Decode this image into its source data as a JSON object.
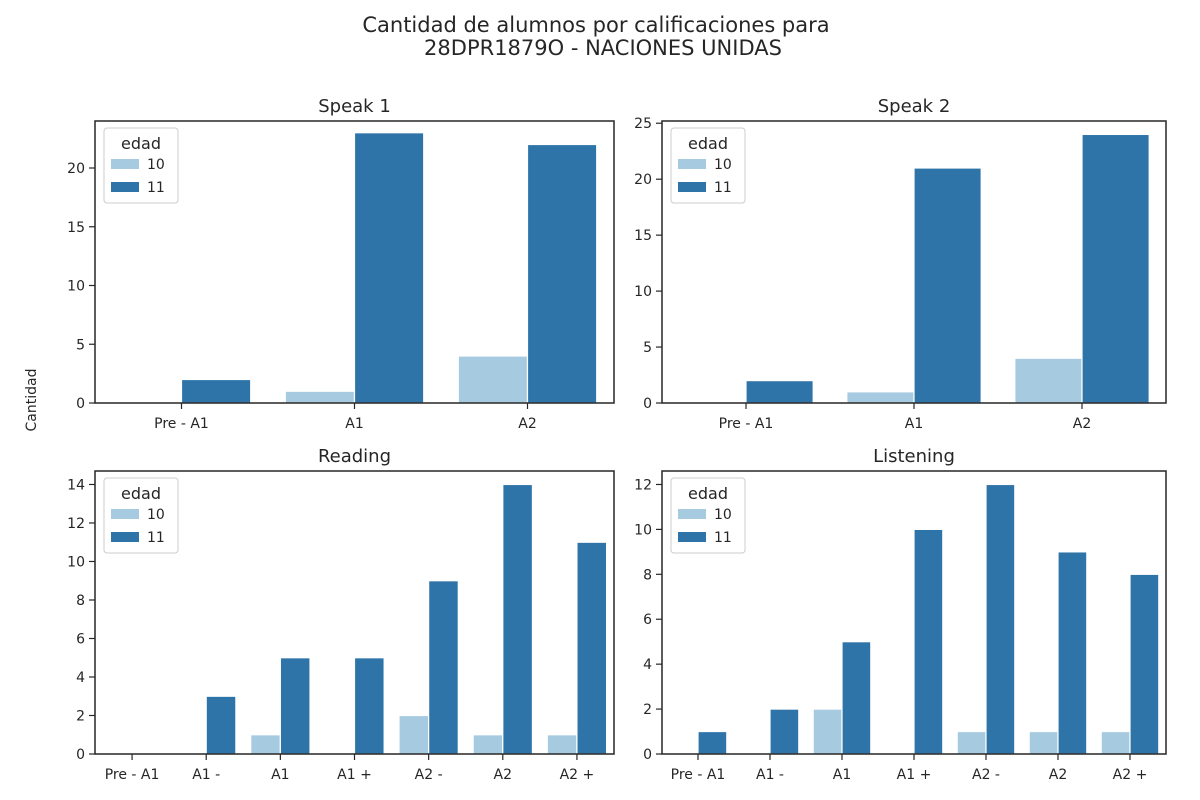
{
  "suptitle": [
    "Cantidad de alumnos por calificaciones para",
    "28DPR1879O - NACIONES UNIDAS"
  ],
  "ylabel": "Cantidad",
  "legend_title": "edad",
  "colors": {
    "10": "#a6cbe0",
    "11": "#2e74a8"
  },
  "chart_data": [
    {
      "type": "bar",
      "title": "Speak 1",
      "categories": [
        "Pre - A1",
        "A1",
        "A2"
      ],
      "series": [
        {
          "name": "10",
          "values": [
            0,
            1,
            4
          ]
        },
        {
          "name": "11",
          "values": [
            2,
            23,
            22
          ]
        }
      ],
      "ylim": [
        0,
        24
      ],
      "yticks": [
        0,
        5,
        10,
        15,
        20
      ],
      "legend": "upper-left"
    },
    {
      "type": "bar",
      "title": "Speak 2",
      "categories": [
        "Pre - A1",
        "A1",
        "A2"
      ],
      "series": [
        {
          "name": "10",
          "values": [
            0,
            1,
            4
          ]
        },
        {
          "name": "11",
          "values": [
            2,
            21,
            24
          ]
        }
      ],
      "ylim": [
        0,
        25.2
      ],
      "yticks": [
        0,
        5,
        10,
        15,
        20,
        25
      ],
      "legend": "upper-left"
    },
    {
      "type": "bar",
      "title": "Reading",
      "categories": [
        "Pre - A1",
        "A1 -",
        "A1",
        "A1 +",
        "A2 -",
        "A2",
        "A2 +"
      ],
      "series": [
        {
          "name": "10",
          "values": [
            0,
            0,
            1,
            0,
            2,
            1,
            1
          ]
        },
        {
          "name": "11",
          "values": [
            0,
            3,
            5,
            5,
            9,
            14,
            11
          ]
        }
      ],
      "ylim": [
        0,
        14.7
      ],
      "yticks": [
        0,
        2,
        4,
        6,
        8,
        10,
        12,
        14
      ],
      "legend": "upper-left"
    },
    {
      "type": "bar",
      "title": "Listening",
      "categories": [
        "Pre - A1",
        "A1 -",
        "A1",
        "A1 +",
        "A2 -",
        "A2",
        "A2 +"
      ],
      "series": [
        {
          "name": "10",
          "values": [
            0,
            0,
            2,
            0,
            1,
            1,
            1
          ]
        },
        {
          "name": "11",
          "values": [
            1,
            2,
            5,
            10,
            12,
            9,
            8
          ]
        }
      ],
      "ylim": [
        0,
        12.6
      ],
      "yticks": [
        0,
        2,
        4,
        6,
        8,
        10,
        12
      ],
      "legend": "upper-left"
    }
  ]
}
